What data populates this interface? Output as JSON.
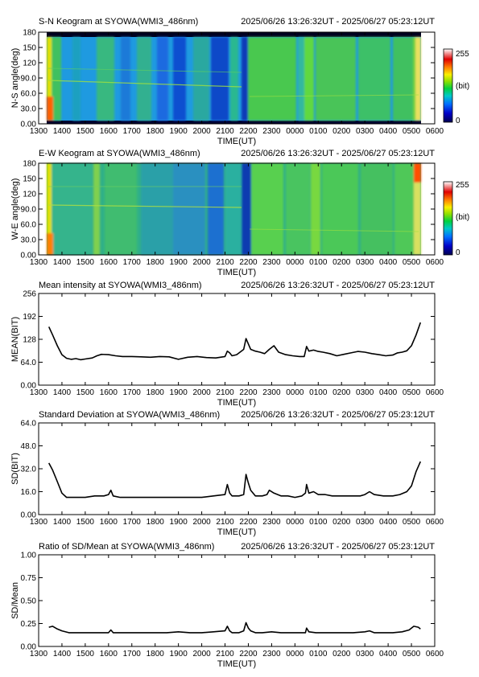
{
  "colors": {
    "frame": "#000000",
    "line": "#000000",
    "background": "#ffffff"
  },
  "colorbar": {
    "max_label": "255",
    "unit_label": "(bit)",
    "min_label": "0",
    "colormap": [
      "#000060",
      "#0000c8",
      "#0060ff",
      "#00c0c0",
      "#00d040",
      "#80e000",
      "#f0f000",
      "#ff8000",
      "#e00000",
      "#ffffff"
    ]
  },
  "chart_data": [
    {
      "type": "heatmap",
      "title_left": "S-N Keogram at SYOWA(WMI3_486nm)",
      "title_right": "2025/06/26 13:26:32UT - 2025/06/27 05:23:12UT",
      "ylabel": "N-S angle(deg)",
      "xlabel": "TIME(UT)",
      "x_ticks": [
        "1300",
        "1400",
        "1500",
        "1600",
        "1700",
        "1800",
        "1900",
        "2000",
        "2100",
        "2200",
        "2300",
        "0000",
        "0100",
        "0200",
        "0300",
        "0400",
        "0500",
        "0600"
      ],
      "y_ticks": [
        "0.00",
        "30.0",
        "60.0",
        "90.0",
        "120",
        "150",
        "180"
      ],
      "ylim": [
        0,
        180
      ]
    },
    {
      "type": "heatmap",
      "title_left": "E-W Keogram at SYOWA(WMI3_486nm)",
      "title_right": "2025/06/26 13:26:32UT - 2025/06/27 05:23:12UT",
      "ylabel": "W-E angle(deg)",
      "xlabel": "TIME(UT)",
      "x_ticks": [
        "1300",
        "1400",
        "1500",
        "1600",
        "1700",
        "1800",
        "1900",
        "2000",
        "2100",
        "2200",
        "2300",
        "0000",
        "0100",
        "0200",
        "0300",
        "0400",
        "0500",
        "0600"
      ],
      "y_ticks": [
        "0.00",
        "30.0",
        "60.0",
        "90.0",
        "120",
        "150",
        "180"
      ],
      "ylim": [
        0,
        180
      ]
    },
    {
      "type": "line",
      "title_left": "Mean intensity at SYOWA(WMI3_486nm)",
      "title_right": "2025/06/26 13:26:32UT - 2025/06/27 05:23:12UT",
      "ylabel": "MEAN(BIT)",
      "xlabel": "TIME(UT)",
      "x_ticks": [
        "1300",
        "1400",
        "1500",
        "1600",
        "1700",
        "1800",
        "1900",
        "2000",
        "2100",
        "2200",
        "2300",
        "0000",
        "0100",
        "0200",
        "0300",
        "0400",
        "0500",
        "0600"
      ],
      "y_ticks": [
        "0.00",
        "64.0",
        "128",
        "192",
        "256"
      ],
      "ylim": [
        0,
        256
      ],
      "x": [
        13.44,
        13.6,
        13.8,
        14.0,
        14.2,
        14.4,
        14.6,
        14.8,
        15.0,
        15.3,
        15.5,
        15.7,
        16.0,
        16.3,
        16.6,
        17.0,
        17.4,
        17.8,
        18.2,
        18.6,
        19.0,
        19.4,
        19.8,
        20.2,
        20.6,
        21.0,
        21.1,
        21.2,
        21.3,
        21.5,
        21.7,
        21.8,
        21.9,
        22.0,
        22.1,
        22.3,
        22.5,
        22.7,
        22.9,
        23.1,
        23.3,
        23.6,
        23.9,
        24.2,
        24.4,
        24.5,
        24.6,
        24.8,
        25.0,
        25.2,
        25.5,
        25.8,
        26.1,
        26.4,
        26.7,
        27.0,
        27.3,
        27.6,
        27.9,
        28.2,
        28.4,
        28.6,
        28.8,
        29.0,
        29.2,
        29.39
      ],
      "series": [
        {
          "values": [
            163,
            140,
            110,
            85,
            75,
            72,
            74,
            71,
            73,
            76,
            82,
            86,
            85,
            82,
            80,
            80,
            79,
            78,
            80,
            79,
            72,
            78,
            80,
            77,
            76,
            80,
            95,
            90,
            82,
            85,
            95,
            100,
            130,
            115,
            100,
            95,
            92,
            88,
            100,
            110,
            92,
            85,
            82,
            80,
            80,
            108,
            95,
            98,
            94,
            92,
            88,
            82,
            86,
            90,
            94,
            92,
            88,
            85,
            82,
            84,
            90,
            92,
            96,
            110,
            140,
            175
          ]
        }
      ]
    },
    {
      "type": "line",
      "title_left": "Standard Deviation at SYOWA(WMI3_486nm)",
      "title_right": "2025/06/26 13:26:32UT - 2025/06/27 05:23:12UT",
      "ylabel": "SD(BIT)",
      "xlabel": "TIME(UT)",
      "x_ticks": [
        "1300",
        "1400",
        "1500",
        "1600",
        "1700",
        "1800",
        "1900",
        "2000",
        "2100",
        "2200",
        "2300",
        "0000",
        "0100",
        "0200",
        "0300",
        "0400",
        "0500",
        "0600"
      ],
      "y_ticks": [
        "0.00",
        "16.0",
        "32.0",
        "48.0",
        "64.0"
      ],
      "ylim": [
        0,
        64
      ],
      "x": [
        13.44,
        13.6,
        13.8,
        14.0,
        14.2,
        14.4,
        14.7,
        15.0,
        15.4,
        15.8,
        16.0,
        16.1,
        16.2,
        16.5,
        17.0,
        17.5,
        18.0,
        18.5,
        19.0,
        19.5,
        20.0,
        20.5,
        21.0,
        21.1,
        21.2,
        21.3,
        21.6,
        21.8,
        21.9,
        22.0,
        22.1,
        22.3,
        22.6,
        22.8,
        22.9,
        23.1,
        23.4,
        23.7,
        24.0,
        24.3,
        24.45,
        24.5,
        24.6,
        24.8,
        25.0,
        25.3,
        25.6,
        26.0,
        26.4,
        26.8,
        27.0,
        27.2,
        27.4,
        27.8,
        28.2,
        28.5,
        28.8,
        29.0,
        29.2,
        29.39
      ],
      "series": [
        {
          "values": [
            36,
            31,
            23,
            15,
            12,
            12,
            12,
            12,
            13,
            13,
            14,
            17,
            13,
            12,
            12,
            12,
            12,
            12,
            12,
            12,
            12,
            13,
            14,
            21,
            15,
            13,
            13,
            14,
            28,
            22,
            17,
            13,
            13,
            14,
            17,
            15,
            13,
            13,
            12,
            13,
            15,
            21,
            15,
            16,
            14,
            14,
            13,
            13,
            13,
            13,
            14,
            16,
            14,
            13,
            13,
            14,
            16,
            20,
            30,
            37
          ]
        }
      ]
    },
    {
      "type": "line",
      "title_left": "Ratio of SD/Mean at SYOWA(WMI3_486nm)",
      "title_right": "2025/06/26 13:26:32UT - 2025/06/27 05:23:12UT",
      "ylabel": "SD/Mean",
      "xlabel": "TIME(UT)",
      "x_ticks": [
        "1300",
        "1400",
        "1500",
        "1600",
        "1700",
        "1800",
        "1900",
        "2000",
        "2100",
        "2200",
        "2300",
        "0000",
        "0100",
        "0200",
        "0300",
        "0400",
        "0500",
        "0600"
      ],
      "y_ticks": [
        "0.00",
        "0.25",
        "0.50",
        "0.75",
        "1.00"
      ],
      "ylim": [
        0,
        1
      ],
      "x": [
        13.44,
        13.6,
        13.8,
        14.0,
        14.3,
        14.6,
        15.0,
        15.5,
        16.0,
        16.1,
        16.2,
        16.6,
        17.0,
        17.5,
        18.0,
        18.5,
        19.0,
        19.5,
        20.0,
        20.5,
        21.0,
        21.1,
        21.2,
        21.3,
        21.6,
        21.8,
        21.9,
        22.0,
        22.1,
        22.3,
        22.6,
        23.0,
        23.4,
        23.8,
        24.2,
        24.45,
        24.5,
        24.6,
        24.9,
        25.3,
        25.7,
        26.1,
        26.5,
        27.0,
        27.2,
        27.4,
        27.8,
        28.2,
        28.6,
        28.9,
        29.1,
        29.3,
        29.39
      ],
      "series": [
        {
          "values": [
            0.21,
            0.22,
            0.19,
            0.17,
            0.15,
            0.15,
            0.15,
            0.15,
            0.15,
            0.18,
            0.15,
            0.15,
            0.15,
            0.15,
            0.15,
            0.15,
            0.16,
            0.15,
            0.15,
            0.16,
            0.17,
            0.22,
            0.17,
            0.15,
            0.15,
            0.17,
            0.26,
            0.2,
            0.17,
            0.15,
            0.15,
            0.16,
            0.15,
            0.15,
            0.15,
            0.15,
            0.2,
            0.16,
            0.15,
            0.15,
            0.15,
            0.15,
            0.15,
            0.16,
            0.17,
            0.15,
            0.15,
            0.15,
            0.16,
            0.18,
            0.22,
            0.21,
            0.19
          ]
        }
      ]
    }
  ]
}
